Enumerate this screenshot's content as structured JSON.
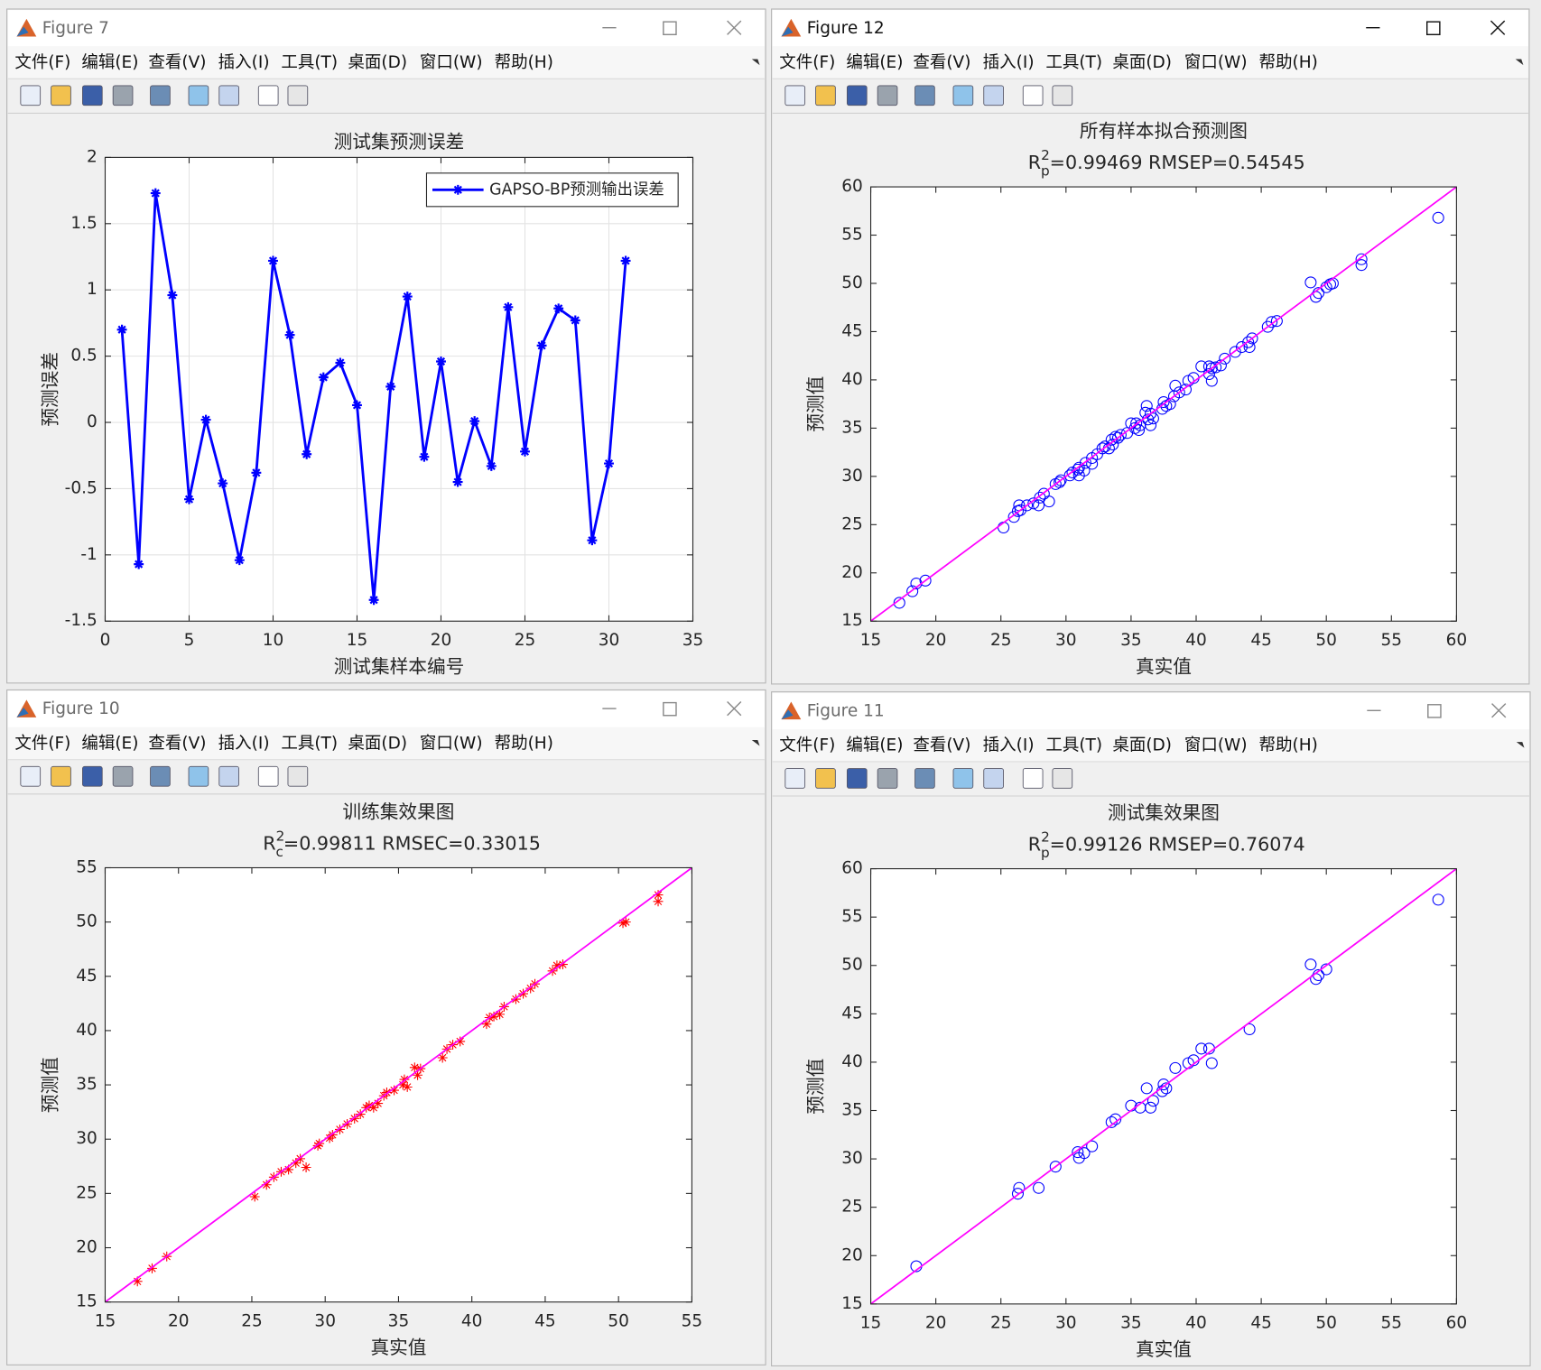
{
  "menu": [
    "文件(F)",
    "编辑(E)",
    "查看(V)",
    "插入(I)",
    "工具(T)",
    "桌面(D)",
    "窗口(W)",
    "帮助(H)"
  ],
  "windows": [
    {
      "title": "Figure 7"
    },
    {
      "title": "Figure 12"
    },
    {
      "title": "Figure 10"
    },
    {
      "title": "Figure 11"
    }
  ],
  "chart_data": [
    {
      "type": "line",
      "title": "测试集预测误差",
      "xlabel": "测试集样本编号",
      "ylabel": "预测误差",
      "x": [
        1,
        2,
        3,
        4,
        5,
        6,
        7,
        8,
        9,
        10,
        11,
        12,
        13,
        14,
        15,
        16,
        17,
        18,
        19,
        20,
        21,
        22,
        23,
        24,
        25,
        26,
        27,
        28,
        29,
        30,
        31
      ],
      "series": [
        {
          "name": "GAPSO-BP预测输出误差",
          "color": "#0000ff",
          "marker": "*",
          "values": [
            0.7,
            -1.07,
            1.73,
            0.96,
            -0.58,
            0.02,
            -0.46,
            -1.04,
            -0.38,
            1.22,
            0.66,
            -0.24,
            0.34,
            0.45,
            0.13,
            -1.34,
            0.27,
            0.95,
            -0.26,
            0.46,
            -0.45,
            0.01,
            -0.33,
            0.87,
            -0.22,
            0.58,
            0.86,
            0.77,
            -0.89,
            -0.31,
            1.22
          ]
        }
      ],
      "xlim": [
        0,
        35
      ],
      "xticks": [
        0,
        5,
        10,
        15,
        20,
        25,
        30,
        35
      ],
      "ylim": [
        -1.5,
        2
      ],
      "yticks": [
        -1.5,
        -1,
        -0.5,
        0,
        0.5,
        1,
        1.5,
        2
      ],
      "grid": true,
      "legend": "upper right"
    },
    {
      "type": "scatter",
      "title": "所有样本拟合预测图",
      "subtitle": {
        "base": "R",
        "sup": "2",
        "sub": "p",
        "text": "=0.99469  RMSEP=0.54545"
      },
      "xlabel": "真实值",
      "ylabel": "预测值",
      "series": [
        {
          "color": "#0000ff",
          "marker": "o",
          "x": [
            17.2,
            18.2,
            19.2,
            25.2,
            26.0,
            26.5,
            27.0,
            27.5,
            28.0,
            28.3,
            28.7,
            29.5,
            29.6,
            30.3,
            30.5,
            31.0,
            31.5,
            32.0,
            32.4,
            32.8,
            33.0,
            33.3,
            33.6,
            34.0,
            34.2,
            34.7,
            35.3,
            35.4,
            35.6,
            36.1,
            36.3,
            36.5,
            38.0,
            38.3,
            38.7,
            39.2,
            41.0,
            41.2,
            41.5,
            41.9,
            42.2,
            43.0,
            43.5,
            44.0,
            44.3,
            45.5,
            45.8,
            46.2,
            50.3,
            50.5,
            52.7,
            52.7,
            18.5,
            26.3,
            26.4,
            27.9,
            29.2,
            30.9,
            31.0,
            31.4,
            32.0,
            33.5,
            33.8,
            35.0,
            35.7,
            36.2,
            36.5,
            36.7,
            37.4,
            37.5,
            37.7,
            38.4,
            39.4,
            39.8,
            40.4,
            41.0,
            41.2,
            44.1,
            48.8,
            49.2,
            49.4,
            50.0,
            58.6
          ],
          "values": [
            16.9,
            18.1,
            19.2,
            24.7,
            25.8,
            26.5,
            27.0,
            27.2,
            27.8,
            28.2,
            27.4,
            29.4,
            29.6,
            30.1,
            30.4,
            30.9,
            31.4,
            31.9,
            32.3,
            32.9,
            33.1,
            32.9,
            33.3,
            34.0,
            34.3,
            34.5,
            35.0,
            35.5,
            34.8,
            36.6,
            35.9,
            36.5,
            37.5,
            38.3,
            38.7,
            39.0,
            40.6,
            41.2,
            41.3,
            41.5,
            42.2,
            42.9,
            43.4,
            43.9,
            44.3,
            45.5,
            46.0,
            46.1,
            49.9,
            50.0,
            52.5,
            51.9,
            18.9,
            26.4,
            27.0,
            27.0,
            29.2,
            30.7,
            30.1,
            30.6,
            31.3,
            33.8,
            34.1,
            35.5,
            35.3,
            37.3,
            35.3,
            36.0,
            37.0,
            37.7,
            37.3,
            39.4,
            39.9,
            40.2,
            41.4,
            41.4,
            39.9,
            43.4,
            50.1,
            48.6,
            49.0,
            49.6,
            56.8
          ]
        },
        {
          "color": "#ff00ff",
          "marker": "line",
          "x": [
            15,
            60
          ],
          "values": [
            15,
            60
          ]
        }
      ],
      "xlim": [
        15,
        60
      ],
      "xticks": [
        15,
        20,
        25,
        30,
        35,
        40,
        45,
        50,
        55,
        60
      ],
      "ylim": [
        15,
        60
      ],
      "yticks": [
        15,
        20,
        25,
        30,
        35,
        40,
        45,
        50,
        55,
        60
      ],
      "grid": false
    },
    {
      "type": "scatter",
      "title": "训练集效果图",
      "subtitle": {
        "base": "R",
        "sup": "2",
        "sub": "c",
        "text": "=0.99811  RMSEC=0.33015"
      },
      "xlabel": "真实值",
      "ylabel": "预测值",
      "series": [
        {
          "color": "#ff0000",
          "marker": "*",
          "x": [
            17.2,
            18.2,
            19.2,
            25.2,
            26.0,
            26.5,
            27.0,
            27.5,
            28.0,
            28.3,
            28.7,
            29.5,
            29.6,
            30.3,
            30.5,
            31.0,
            31.5,
            32.0,
            32.4,
            32.8,
            33.0,
            33.3,
            33.6,
            34.0,
            34.2,
            34.7,
            35.3,
            35.4,
            35.6,
            36.1,
            36.3,
            36.5,
            38.0,
            38.3,
            38.7,
            39.2,
            41.0,
            41.2,
            41.5,
            41.9,
            42.2,
            43.0,
            43.5,
            44.0,
            44.3,
            45.5,
            45.8,
            46.2,
            50.3,
            50.5,
            52.7,
            52.7
          ],
          "values": [
            16.9,
            18.1,
            19.2,
            24.7,
            25.8,
            26.5,
            27.0,
            27.2,
            27.8,
            28.2,
            27.4,
            29.4,
            29.6,
            30.1,
            30.4,
            30.9,
            31.4,
            31.9,
            32.3,
            32.9,
            33.1,
            32.9,
            33.3,
            34.0,
            34.3,
            34.5,
            35.0,
            35.5,
            34.8,
            36.6,
            35.9,
            36.5,
            37.5,
            38.3,
            38.7,
            39.0,
            40.6,
            41.2,
            41.3,
            41.5,
            42.2,
            42.9,
            43.4,
            43.9,
            44.3,
            45.5,
            46.0,
            46.1,
            49.9,
            50.0,
            52.5,
            51.9
          ]
        },
        {
          "color": "#ff00ff",
          "marker": "line",
          "x": [
            15,
            55
          ],
          "values": [
            15,
            55
          ]
        }
      ],
      "xlim": [
        15,
        55
      ],
      "xticks": [
        15,
        20,
        25,
        30,
        35,
        40,
        45,
        50,
        55
      ],
      "ylim": [
        15,
        55
      ],
      "yticks": [
        15,
        20,
        25,
        30,
        35,
        40,
        45,
        50,
        55
      ],
      "grid": false
    },
    {
      "type": "scatter",
      "title": "测试集效果图",
      "subtitle": {
        "base": "R",
        "sup": "2",
        "sub": "p",
        "text": "=0.99126  RMSEP=0.76074"
      },
      "xlabel": "真实值",
      "ylabel": "预测值",
      "series": [
        {
          "color": "#0000ff",
          "marker": "o",
          "x": [
            18.5,
            26.3,
            26.4,
            27.9,
            29.2,
            30.9,
            31.0,
            31.4,
            32.0,
            33.5,
            33.8,
            35.0,
            35.7,
            36.2,
            36.5,
            36.7,
            37.4,
            37.5,
            37.7,
            38.4,
            39.4,
            39.8,
            40.4,
            41.0,
            41.2,
            44.1,
            48.8,
            49.2,
            49.4,
            50.0,
            58.6
          ],
          "values": [
            18.9,
            26.4,
            27.0,
            27.0,
            29.2,
            30.7,
            30.1,
            30.6,
            31.3,
            33.8,
            34.1,
            35.5,
            35.3,
            37.3,
            35.3,
            36.0,
            37.0,
            37.7,
            37.3,
            39.4,
            39.9,
            40.2,
            41.4,
            41.4,
            39.9,
            43.4,
            50.1,
            48.6,
            49.0,
            49.6,
            56.8
          ]
        },
        {
          "color": "#ff00ff",
          "marker": "line",
          "x": [
            15,
            60
          ],
          "values": [
            15,
            60
          ]
        }
      ],
      "xlim": [
        15,
        60
      ],
      "xticks": [
        15,
        20,
        25,
        30,
        35,
        40,
        45,
        50,
        55,
        60
      ],
      "ylim": [
        15,
        60
      ],
      "yticks": [
        15,
        20,
        25,
        30,
        35,
        40,
        45,
        50,
        55,
        60
      ],
      "grid": false
    }
  ]
}
